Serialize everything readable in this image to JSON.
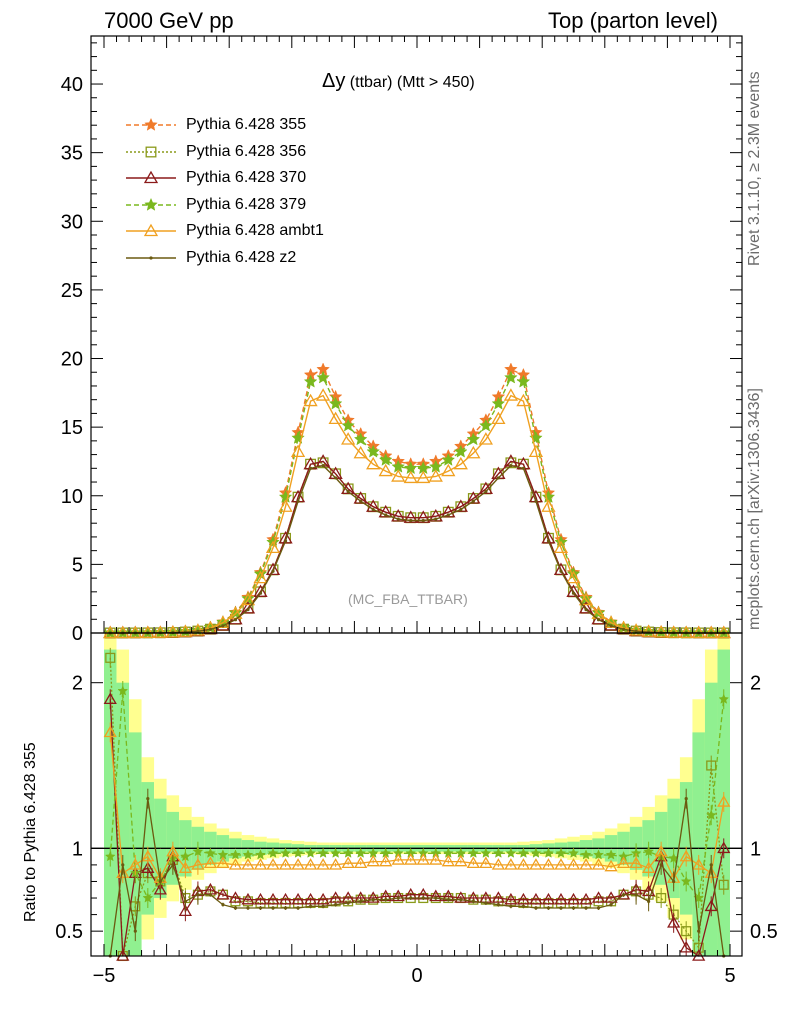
{
  "header": {
    "left": "7000 GeV pp",
    "right": "Top (parton level)"
  },
  "plot_title": {
    "main": "Δy",
    "sub": " (ttbar) (Mtt > 450)"
  },
  "side_labels": {
    "rivet": "Rivet 3.1.10, ≥ 2.3M events",
    "mcplots": "mcplots.cern.ch [arXiv:1306.3436]"
  },
  "watermark": "(MC_FBA_TTBAR)",
  "ratio_ylabel": "Ratio to Pythia 6.428 355",
  "colors": {
    "p355": "#f07a2a",
    "p356": "#8a9a1a",
    "p370": "#8b1a1a",
    "p379": "#7ab81e",
    "ambt1": "#f0a020",
    "z2": "#6b5a10",
    "band_green": "#90f090",
    "band_yellow": "#ffff90"
  },
  "chart_data": [
    {
      "type": "line",
      "title": "Δy (ttbar) (Mtt > 450)",
      "xlim": [
        -5,
        5
      ],
      "ylim": [
        0,
        43.5
      ],
      "xticks": [
        -5,
        0,
        5
      ],
      "yticks": [
        0,
        5,
        10,
        15,
        20,
        25,
        30,
        35,
        40
      ],
      "grid": false,
      "legend_position": "top-left",
      "x": [
        -4.9,
        -4.7,
        -4.5,
        -4.3,
        -4.1,
        -3.9,
        -3.7,
        -3.5,
        -3.3,
        -3.1,
        -2.9,
        -2.7,
        -2.5,
        -2.3,
        -2.1,
        -1.9,
        -1.7,
        -1.5,
        -1.3,
        -1.1,
        -0.9,
        -0.7,
        -0.5,
        -0.3,
        -0.1,
        0.1,
        0.3,
        0.5,
        0.7,
        0.9,
        1.1,
        1.3,
        1.5,
        1.7,
        1.9,
        2.1,
        2.3,
        2.5,
        2.7,
        2.9,
        3.1,
        3.3,
        3.5,
        3.7,
        3.9,
        4.1,
        4.3,
        4.5,
        4.7,
        4.9
      ],
      "series": [
        {
          "name": "Pythia 6.428 355",
          "marker": "star",
          "dash": "dashed",
          "color": "#f07a2a",
          "values": [
            0.001,
            0.003,
            0.006,
            0.012,
            0.025,
            0.05,
            0.1,
            0.2,
            0.4,
            0.8,
            1.5,
            2.6,
            4.4,
            6.8,
            10.2,
            14.6,
            18.8,
            19.2,
            17.2,
            15.5,
            14.5,
            13.6,
            12.9,
            12.5,
            12.3,
            12.3,
            12.5,
            12.9,
            13.6,
            14.5,
            15.5,
            17.2,
            19.2,
            18.8,
            14.6,
            10.2,
            6.8,
            4.4,
            2.6,
            1.5,
            0.8,
            0.4,
            0.2,
            0.1,
            0.05,
            0.025,
            0.012,
            0.006,
            0.003,
            0.001
          ]
        },
        {
          "name": "Pythia 6.428 356",
          "marker": "open-square",
          "dash": "dotted",
          "color": "#8a9a1a",
          "values": [
            0.001,
            0.002,
            0.004,
            0.008,
            0.016,
            0.033,
            0.07,
            0.14,
            0.28,
            0.55,
            1.0,
            1.8,
            3.0,
            4.6,
            6.9,
            9.9,
            12.3,
            12.4,
            11.6,
            10.5,
            9.8,
            9.2,
            8.8,
            8.5,
            8.4,
            8.4,
            8.5,
            8.8,
            9.2,
            9.8,
            10.5,
            11.6,
            12.4,
            12.3,
            9.9,
            6.9,
            4.6,
            3.0,
            1.8,
            1.0,
            0.55,
            0.28,
            0.14,
            0.07,
            0.033,
            0.016,
            0.008,
            0.004,
            0.002,
            0.001
          ]
        },
        {
          "name": "Pythia 6.428 370",
          "marker": "open-triangle",
          "dash": "solid",
          "color": "#8b1a1a",
          "values": [
            0.001,
            0.002,
            0.004,
            0.008,
            0.016,
            0.033,
            0.07,
            0.14,
            0.28,
            0.55,
            1.0,
            1.8,
            3.0,
            4.6,
            6.9,
            9.9,
            12.3,
            12.5,
            11.6,
            10.5,
            9.8,
            9.2,
            8.8,
            8.5,
            8.4,
            8.4,
            8.5,
            8.8,
            9.2,
            9.8,
            10.5,
            11.6,
            12.5,
            12.3,
            9.9,
            6.9,
            4.6,
            3.0,
            1.8,
            1.0,
            0.55,
            0.28,
            0.14,
            0.07,
            0.033,
            0.016,
            0.008,
            0.004,
            0.002,
            0.001
          ]
        },
        {
          "name": "Pythia 6.428 379",
          "marker": "star",
          "dash": "dashed",
          "color": "#7ab81e",
          "values": [
            0.001,
            0.003,
            0.006,
            0.012,
            0.024,
            0.048,
            0.097,
            0.19,
            0.39,
            0.78,
            1.46,
            2.5,
            4.3,
            6.6,
            9.9,
            14.2,
            18.3,
            18.6,
            16.7,
            15.1,
            14.1,
            13.2,
            12.6,
            12.1,
            12.0,
            12.0,
            12.1,
            12.6,
            13.2,
            14.1,
            15.1,
            16.7,
            18.6,
            18.3,
            14.2,
            9.9,
            6.6,
            4.3,
            2.5,
            1.46,
            0.78,
            0.39,
            0.19,
            0.097,
            0.048,
            0.024,
            0.012,
            0.006,
            0.003,
            0.001
          ]
        },
        {
          "name": "Pythia 6.428 ambt1",
          "marker": "open-triangle",
          "dash": "solid",
          "color": "#f0a020",
          "values": [
            0.001,
            0.003,
            0.006,
            0.011,
            0.023,
            0.046,
            0.092,
            0.18,
            0.37,
            0.74,
            1.4,
            2.4,
            4.0,
            6.2,
            9.2,
            13.2,
            16.9,
            17.3,
            15.6,
            14.1,
            13.1,
            12.3,
            11.8,
            11.4,
            11.3,
            11.3,
            11.4,
            11.8,
            12.3,
            13.1,
            14.1,
            15.6,
            17.3,
            16.9,
            13.2,
            9.2,
            6.2,
            4.0,
            2.4,
            1.4,
            0.74,
            0.37,
            0.18,
            0.092,
            0.046,
            0.023,
            0.011,
            0.006,
            0.003,
            0.001
          ]
        },
        {
          "name": "Pythia 6.428 z2",
          "marker": "dot",
          "dash": "solid",
          "color": "#6b5a10",
          "values": [
            0.001,
            0.002,
            0.004,
            0.008,
            0.016,
            0.032,
            0.068,
            0.13,
            0.27,
            0.52,
            0.97,
            1.7,
            2.9,
            4.5,
            6.7,
            9.6,
            12.0,
            12.2,
            11.3,
            10.3,
            9.6,
            9.0,
            8.6,
            8.3,
            8.2,
            8.2,
            8.3,
            8.6,
            9.0,
            9.6,
            10.3,
            11.3,
            12.2,
            12.0,
            9.6,
            6.7,
            4.5,
            2.9,
            1.7,
            0.97,
            0.52,
            0.27,
            0.13,
            0.068,
            0.032,
            0.016,
            0.008,
            0.004,
            0.002,
            0.001
          ]
        }
      ]
    },
    {
      "type": "line",
      "ylabel": "Ratio to Pythia 6.428 355",
      "xlim": [
        -5,
        5
      ],
      "ylim": [
        0.35,
        2.3
      ],
      "xticks": [
        -5,
        0,
        5
      ],
      "yticks": [
        0.5,
        1,
        2
      ],
      "reference": 1,
      "x": [
        -4.9,
        -4.7,
        -4.5,
        -4.3,
        -4.1,
        -3.9,
        -3.7,
        -3.5,
        -3.3,
        -3.1,
        -2.9,
        -2.7,
        -2.5,
        -2.3,
        -2.1,
        -1.9,
        -1.7,
        -1.5,
        -1.3,
        -1.1,
        -0.9,
        -0.7,
        -0.5,
        -0.3,
        -0.1,
        0.1,
        0.3,
        0.5,
        0.7,
        0.9,
        1.1,
        1.3,
        1.5,
        1.7,
        1.9,
        2.1,
        2.3,
        2.5,
        2.7,
        2.9,
        3.1,
        3.3,
        3.5,
        3.7,
        3.9,
        4.1,
        4.3,
        4.5,
        4.7,
        4.9
      ],
      "bands": {
        "green_halfwidth": [
          1.2,
          1.0,
          0.7,
          0.4,
          0.3,
          0.22,
          0.17,
          0.13,
          0.1,
          0.08,
          0.06,
          0.05,
          0.04,
          0.035,
          0.03,
          0.025,
          0.02,
          0.02,
          0.02,
          0.02,
          0.02,
          0.02,
          0.02,
          0.02,
          0.02,
          0.02,
          0.02,
          0.02,
          0.02,
          0.02,
          0.02,
          0.02,
          0.02,
          0.02,
          0.025,
          0.03,
          0.035,
          0.04,
          0.05,
          0.06,
          0.08,
          0.1,
          0.13,
          0.17,
          0.22,
          0.3,
          0.4,
          0.7,
          1.0,
          1.2
        ],
        "yellow_halfwidth": [
          1.3,
          1.2,
          0.9,
          0.55,
          0.42,
          0.32,
          0.25,
          0.19,
          0.15,
          0.12,
          0.1,
          0.08,
          0.07,
          0.06,
          0.05,
          0.045,
          0.04,
          0.035,
          0.035,
          0.035,
          0.035,
          0.035,
          0.035,
          0.035,
          0.035,
          0.035,
          0.035,
          0.035,
          0.035,
          0.035,
          0.035,
          0.035,
          0.035,
          0.04,
          0.045,
          0.05,
          0.06,
          0.07,
          0.08,
          0.1,
          0.12,
          0.15,
          0.19,
          0.25,
          0.32,
          0.42,
          0.55,
          0.9,
          1.2,
          1.3
        ]
      },
      "series": [
        {
          "name": "Pythia 6.428 356",
          "values": [
            2.15,
            0.3,
            0.65,
            0.85,
            0.8,
            0.93,
            0.7,
            0.72,
            0.74,
            0.72,
            0.68,
            0.68,
            0.67,
            0.67,
            0.67,
            0.67,
            0.67,
            0.67,
            0.68,
            0.68,
            0.69,
            0.69,
            0.7,
            0.7,
            0.7,
            0.7,
            0.7,
            0.7,
            0.7,
            0.69,
            0.69,
            0.68,
            0.68,
            0.67,
            0.67,
            0.67,
            0.67,
            0.67,
            0.67,
            0.68,
            0.68,
            0.72,
            0.74,
            0.72,
            0.7,
            0.6,
            0.5,
            0.4,
            1.5,
            0.78
          ]
        },
        {
          "name": "Pythia 6.428 370",
          "values": [
            1.9,
            0.3,
            0.85,
            0.88,
            0.75,
            0.95,
            0.62,
            0.74,
            0.75,
            0.72,
            0.7,
            0.69,
            0.69,
            0.69,
            0.69,
            0.69,
            0.69,
            0.69,
            0.7,
            0.7,
            0.7,
            0.7,
            0.71,
            0.71,
            0.72,
            0.72,
            0.71,
            0.71,
            0.7,
            0.7,
            0.7,
            0.7,
            0.69,
            0.69,
            0.69,
            0.69,
            0.69,
            0.69,
            0.69,
            0.7,
            0.7,
            0.72,
            0.75,
            0.74,
            0.95,
            0.55,
            0.4,
            0.3,
            0.65,
            1.0
          ]
        },
        {
          "name": "Pythia 6.428 379",
          "values": [
            0.95,
            1.95,
            0.85,
            0.7,
            0.8,
            0.94,
            0.95,
            0.98,
            0.97,
            0.96,
            0.96,
            0.96,
            0.96,
            0.97,
            0.97,
            0.97,
            0.97,
            0.97,
            0.97,
            0.97,
            0.97,
            0.97,
            0.97,
            0.97,
            0.97,
            0.97,
            0.97,
            0.97,
            0.97,
            0.97,
            0.97,
            0.97,
            0.97,
            0.97,
            0.97,
            0.97,
            0.97,
            0.97,
            0.96,
            0.96,
            0.96,
            0.95,
            0.97,
            0.98,
            0.95,
            0.94,
            0.8,
            0.7,
            1.2,
            1.9
          ]
        },
        {
          "name": "Pythia 6.428 ambt1",
          "values": [
            1.7,
            0.85,
            0.9,
            0.95,
            0.82,
            0.98,
            0.88,
            0.9,
            0.91,
            0.91,
            0.9,
            0.9,
            0.9,
            0.9,
            0.9,
            0.9,
            0.9,
            0.9,
            0.9,
            0.91,
            0.91,
            0.92,
            0.92,
            0.93,
            0.93,
            0.93,
            0.93,
            0.92,
            0.92,
            0.91,
            0.91,
            0.9,
            0.9,
            0.9,
            0.9,
            0.9,
            0.9,
            0.9,
            0.9,
            0.9,
            0.89,
            0.91,
            0.91,
            0.88,
            0.98,
            0.82,
            0.95,
            0.9,
            0.85,
            1.28
          ]
        },
        {
          "name": "Pythia 6.428 z2",
          "values": [
            0.3,
            0.9,
            0.5,
            1.3,
            0.8,
            0.9,
            0.68,
            0.72,
            0.72,
            0.66,
            0.64,
            0.64,
            0.64,
            0.64,
            0.64,
            0.64,
            0.65,
            0.65,
            0.66,
            0.67,
            0.68,
            0.69,
            0.69,
            0.7,
            0.7,
            0.7,
            0.7,
            0.69,
            0.69,
            0.68,
            0.67,
            0.66,
            0.65,
            0.65,
            0.64,
            0.64,
            0.64,
            0.64,
            0.64,
            0.64,
            0.66,
            0.72,
            0.72,
            0.68,
            0.9,
            0.8,
            1.3,
            0.5,
            0.9,
            0.3
          ]
        }
      ]
    }
  ]
}
